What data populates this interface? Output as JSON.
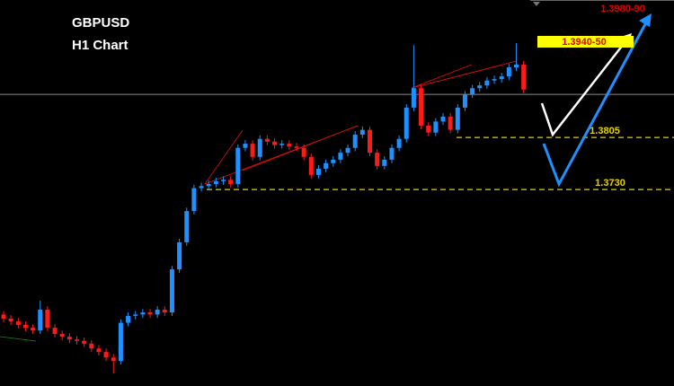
{
  "chart_data": {
    "type": "candlestick",
    "title": "GBPUSD",
    "subtitle": "H1 Chart",
    "ylim": [
      1.3447,
      1.4003
    ],
    "up_color": "#1e90ff",
    "down_color": "#ff1a1a",
    "open": [
      1.355,
      1.3544,
      1.354,
      1.3535,
      1.3531,
      1.3527,
      1.3557,
      1.3531,
      1.3522,
      1.3518,
      1.3514,
      1.3512,
      1.3508,
      1.3501,
      1.3496,
      1.3488,
      1.3483,
      1.3538,
      1.3548,
      1.355,
      1.3553,
      1.355,
      1.3557,
      1.3553,
      1.3615,
      1.3654,
      1.3699,
      1.3732,
      1.3735,
      1.3738,
      1.3742,
      1.3744,
      1.3738,
      1.379,
      1.3796,
      1.3777,
      1.3803,
      1.3799,
      1.3794,
      1.3796,
      1.3792,
      1.379,
      1.3777,
      1.3751,
      1.376,
      1.3768,
      1.3773,
      1.3783,
      1.379,
      1.3809,
      1.3816,
      1.3783,
      1.3764,
      1.3773,
      1.379,
      1.3803,
      1.3848,
      1.3876,
      1.3822,
      1.3812,
      1.3828,
      1.3835,
      1.3816,
      1.3848,
      1.3867,
      1.3876,
      1.388,
      1.3887,
      1.3889,
      1.3893,
      1.3906,
      1.391
    ],
    "high": [
      1.3555,
      1.3549,
      1.3545,
      1.354,
      1.3536,
      1.357,
      1.3562,
      1.3536,
      1.3527,
      1.3523,
      1.3519,
      1.3517,
      1.3513,
      1.3506,
      1.3501,
      1.3493,
      1.3543,
      1.3553,
      1.3555,
      1.3558,
      1.3558,
      1.3562,
      1.3562,
      1.362,
      1.3659,
      1.3704,
      1.3737,
      1.374,
      1.3743,
      1.3747,
      1.3749,
      1.3749,
      1.3795,
      1.3801,
      1.3801,
      1.3808,
      1.3808,
      1.3804,
      1.3801,
      1.3801,
      1.3797,
      1.3795,
      1.3782,
      1.3765,
      1.3773,
      1.3778,
      1.3788,
      1.3795,
      1.3814,
      1.3821,
      1.3821,
      1.3788,
      1.3778,
      1.3795,
      1.3808,
      1.3853,
      1.3938,
      1.3881,
      1.3827,
      1.3833,
      1.384,
      1.384,
      1.3853,
      1.3872,
      1.3881,
      1.3885,
      1.3892,
      1.3894,
      1.3898,
      1.3911,
      1.3941,
      1.3915
    ],
    "low": [
      1.3539,
      1.3535,
      1.353,
      1.3526,
      1.3522,
      1.3522,
      1.3526,
      1.3517,
      1.3513,
      1.3509,
      1.3507,
      1.3503,
      1.3496,
      1.3491,
      1.3483,
      1.3465,
      1.3478,
      1.3533,
      1.3543,
      1.3545,
      1.3545,
      1.3545,
      1.3548,
      1.3548,
      1.361,
      1.3649,
      1.3694,
      1.3727,
      1.373,
      1.3733,
      1.3737,
      1.3733,
      1.3733,
      1.3785,
      1.3772,
      1.3772,
      1.3794,
      1.3789,
      1.3789,
      1.3787,
      1.3785,
      1.3772,
      1.3746,
      1.3746,
      1.3755,
      1.3763,
      1.3768,
      1.3778,
      1.3785,
      1.3804,
      1.3778,
      1.3759,
      1.3759,
      1.3768,
      1.3785,
      1.3798,
      1.3843,
      1.3817,
      1.3807,
      1.3807,
      1.3823,
      1.3811,
      1.3811,
      1.3843,
      1.3862,
      1.3871,
      1.3875,
      1.3882,
      1.3884,
      1.3888,
      1.3901,
      1.3869
    ],
    "close": [
      1.3544,
      1.354,
      1.3535,
      1.3531,
      1.3527,
      1.3557,
      1.3531,
      1.3522,
      1.3518,
      1.3514,
      1.3512,
      1.3508,
      1.3501,
      1.3496,
      1.3488,
      1.3483,
      1.3538,
      1.3548,
      1.355,
      1.3553,
      1.355,
      1.3557,
      1.3553,
      1.3615,
      1.3654,
      1.3699,
      1.3732,
      1.3735,
      1.3738,
      1.3742,
      1.3744,
      1.3738,
      1.379,
      1.3796,
      1.3777,
      1.3803,
      1.3799,
      1.3794,
      1.3796,
      1.3792,
      1.379,
      1.3777,
      1.3751,
      1.376,
      1.3768,
      1.3773,
      1.3783,
      1.379,
      1.3809,
      1.3816,
      1.3783,
      1.3764,
      1.3773,
      1.379,
      1.3803,
      1.3848,
      1.3876,
      1.3822,
      1.3812,
      1.3828,
      1.3835,
      1.3816,
      1.3848,
      1.3867,
      1.3876,
      1.388,
      1.3887,
      1.3889,
      1.3893,
      1.3906,
      1.391,
      1.3874
    ],
    "price_line": 1.3867,
    "levels": [
      1.3805,
      {
        "value": 1.373,
        "label": "1.3730"
      }
    ],
    "level_color": "#e6d200",
    "annotations": [
      "1.3940-50",
      "1.3980-90"
    ]
  }
}
